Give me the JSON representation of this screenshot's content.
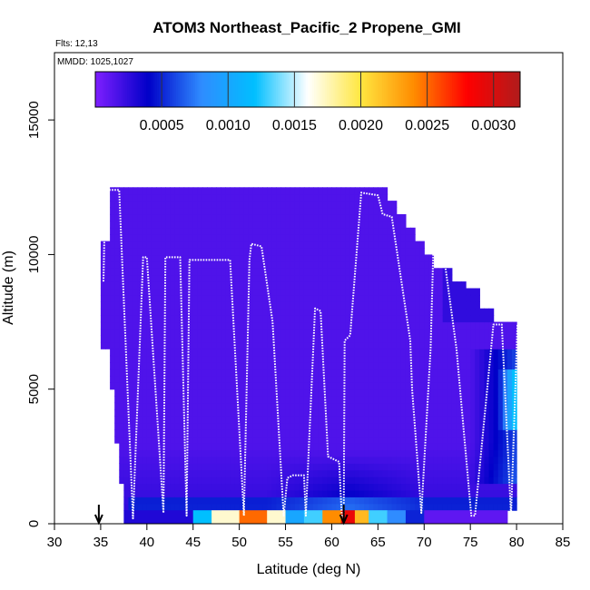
{
  "chart_data": {
    "type": "heatmap",
    "title": "ATOM3 Northeast_Pacific_2 Propene_GMI",
    "flights_note": "Flts: 12,13",
    "mmdd_note": "MMDD: 1025,1027",
    "xlabel": "Latitude (deg N)",
    "ylabel": "Altitude (m)",
    "xlim": [
      30,
      85
    ],
    "ylim": [
      0,
      17500
    ],
    "x_ticks": [
      "30",
      "35",
      "40",
      "45",
      "50",
      "55",
      "60",
      "65",
      "70",
      "75",
      "80",
      "85"
    ],
    "y_ticks": [
      "0",
      "5000",
      "10000",
      "15000"
    ],
    "colorbar": {
      "range": [
        0,
        0.0032
      ],
      "ticks": [
        "0.0005",
        "0.0010",
        "0.0015",
        "0.0020",
        "0.0025",
        "0.0030"
      ],
      "tick_values": [
        0.0005,
        0.001,
        0.0015,
        0.002,
        0.0025,
        0.003
      ],
      "colors": [
        "#7f1fff",
        "#0000c8",
        "#2f8cff",
        "#00bfff",
        "#ffffff",
        "#ffe640",
        "#ff8c00",
        "#ff0000",
        "#b01c1c"
      ]
    },
    "arrow_markers_latitude": [
      34.8,
      61.3
    ],
    "surface_band": {
      "alt_range": [
        0,
        500
      ],
      "cells": [
        {
          "lat": [
            37.5,
            45
          ],
          "value": 0.0003
        },
        {
          "lat": [
            45,
            47
          ],
          "value": 0.0012
        },
        {
          "lat": [
            47,
            50
          ],
          "value": 0.0017
        },
        {
          "lat": [
            50,
            53
          ],
          "value": 0.0025
        },
        {
          "lat": [
            53,
            55
          ],
          "value": 0.0017
        },
        {
          "lat": [
            55,
            57
          ],
          "value": 0.001
        },
        {
          "lat": [
            57,
            59
          ],
          "value": 0.0013
        },
        {
          "lat": [
            59,
            61
          ],
          "value": 0.0024
        },
        {
          "lat": [
            61,
            62.5
          ],
          "value": 0.0029
        },
        {
          "lat": [
            62.5,
            64
          ],
          "value": 0.0022
        },
        {
          "lat": [
            64,
            66
          ],
          "value": 0.0013
        },
        {
          "lat": [
            66,
            68
          ],
          "value": 0.0008
        },
        {
          "lat": [
            68,
            70
          ],
          "value": 0.0005
        },
        {
          "lat": [
            70,
            79
          ],
          "value": 0.0001
        }
      ]
    },
    "flight_track": {
      "lat": [
        35.3,
        35.5,
        36.3,
        37.0,
        38.5,
        39.6,
        40.0,
        41.8,
        42.0,
        43.6,
        44.3,
        44.6,
        47.2,
        49.0,
        50.5,
        51.1,
        51.3,
        52.4,
        53.6,
        54.8,
        55.2,
        55.8,
        57.0,
        57.2,
        58.2,
        58.8,
        59.6,
        60.8,
        61.1,
        61.3,
        61.4,
        62.0,
        63.2,
        65.0,
        65.5,
        66.5,
        68.5,
        68.7,
        69.7,
        70.7,
        71.0,
        72.0,
        73.5,
        75.1,
        75.5,
        77.5,
        78.4,
        79.4,
        80.1
      ],
      "alt": [
        9000,
        12400,
        12400,
        12400,
        200,
        9900,
        9900,
        400,
        9900,
        9900,
        300,
        9800,
        9800,
        9800,
        300,
        9800,
        10400,
        10300,
        7500,
        300,
        1700,
        1800,
        1800,
        300,
        8000,
        7900,
        2500,
        2300,
        200,
        300,
        6800,
        7000,
        12300,
        12200,
        11500,
        11400,
        6800,
        5000,
        400,
        6500,
        10300,
        10300,
        6500,
        300,
        300,
        7400,
        7400,
        300,
        7400
      ]
    }
  }
}
